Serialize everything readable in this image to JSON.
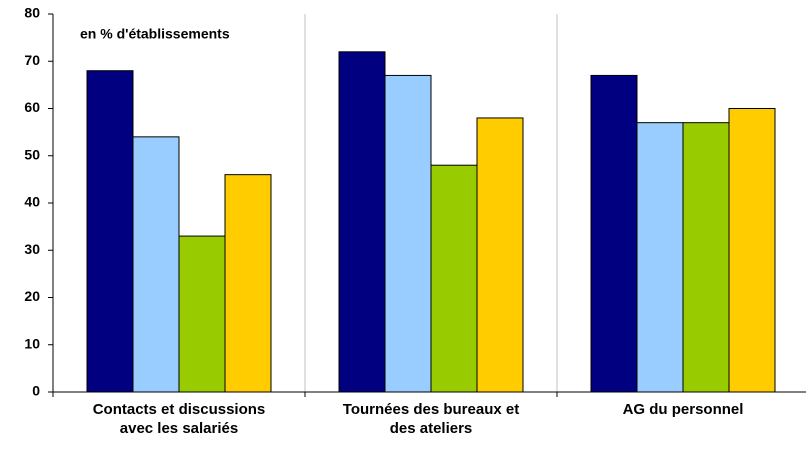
{
  "chart_data": {
    "type": "bar",
    "annotation": "en % d'établissements",
    "categories": [
      "Contacts et discussions avec les salariés",
      "Tournées des bureaux et des ateliers",
      "AG du personnel"
    ],
    "series": [
      {
        "color": "#000080",
        "values": [
          68,
          72,
          67
        ]
      },
      {
        "color": "#99ccff",
        "values": [
          54,
          67,
          57
        ]
      },
      {
        "color": "#99cc00",
        "values": [
          33,
          48,
          57
        ]
      },
      {
        "color": "#ffcc00",
        "values": [
          46,
          58,
          60
        ]
      }
    ],
    "ylim": [
      0,
      80
    ],
    "yticks": [
      0,
      10,
      20,
      30,
      40,
      50,
      60,
      70,
      80
    ],
    "category_separators": true
  }
}
